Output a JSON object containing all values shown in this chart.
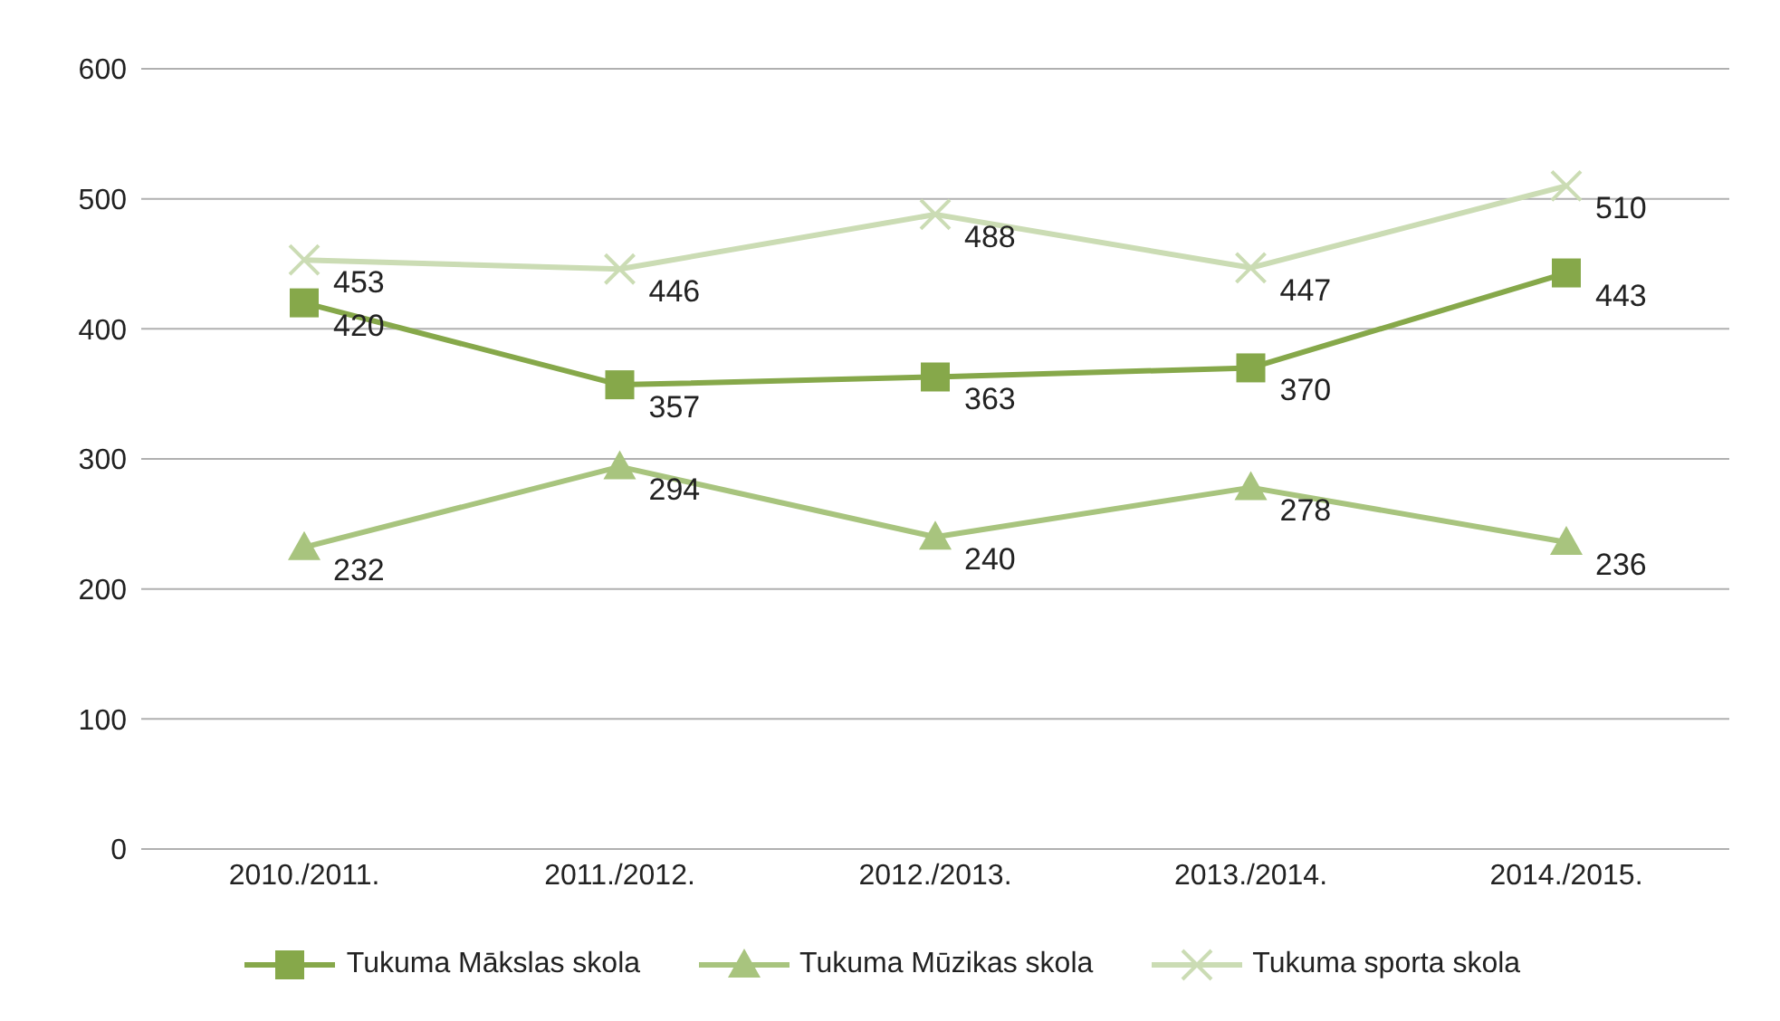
{
  "chart_data": {
    "type": "line",
    "categories": [
      "2010./2011.",
      "2011./2012.",
      "2012./2013.",
      "2013./2014.",
      "2014./2015."
    ],
    "series": [
      {
        "name": "Tukuma Mākslas skola",
        "color": "#86a84a",
        "marker": "square",
        "values": [
          420,
          357,
          363,
          370,
          443
        ]
      },
      {
        "name": "Tukuma Mūzikas skola",
        "color": "#a8c47e",
        "marker": "triangle",
        "values": [
          232,
          294,
          240,
          278,
          236
        ]
      },
      {
        "name": "Tukuma sporta skola",
        "color": "#cbdcb4",
        "marker": "cross",
        "values": [
          453,
          446,
          488,
          447,
          510
        ]
      }
    ],
    "ylim": [
      0,
      600
    ],
    "yticks": [
      0,
      100,
      200,
      300,
      400,
      500,
      600
    ],
    "grid": "y",
    "legend": "bottom",
    "data_labels": true
  }
}
